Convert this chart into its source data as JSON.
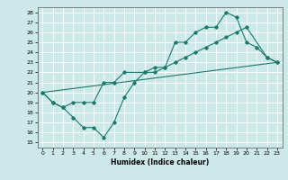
{
  "xlabel": "Humidex (Indice chaleur)",
  "bg_color": "#cce8e8",
  "grid_color": "#ffffff",
  "line_color": "#1a7a6a",
  "xlim": [
    -0.5,
    23.5
  ],
  "ylim": [
    14.5,
    28.5
  ],
  "xticks": [
    0,
    1,
    2,
    3,
    4,
    5,
    6,
    7,
    8,
    9,
    10,
    11,
    12,
    13,
    14,
    15,
    16,
    17,
    18,
    19,
    20,
    21,
    22,
    23
  ],
  "yticks": [
    15,
    16,
    17,
    18,
    19,
    20,
    21,
    22,
    23,
    24,
    25,
    26,
    27,
    28
  ],
  "line1_x": [
    0,
    1,
    2,
    3,
    4,
    5,
    6,
    7,
    8,
    9,
    10,
    11,
    12,
    13,
    14,
    15,
    16,
    17,
    18,
    19,
    20,
    21,
    22,
    23
  ],
  "line1_y": [
    20,
    19,
    18.5,
    17.5,
    16.5,
    16.5,
    15.5,
    17.0,
    19.5,
    21.0,
    22.0,
    22.0,
    22.5,
    25.0,
    25.0,
    26.0,
    26.5,
    26.5,
    28.0,
    27.5,
    25.0,
    24.5,
    23.5,
    23.0
  ],
  "line2_x": [
    0,
    1,
    2,
    3,
    4,
    5,
    6,
    7,
    8,
    10,
    11,
    12,
    13,
    14,
    15,
    16,
    17,
    18,
    19,
    20,
    22,
    23
  ],
  "line2_y": [
    20,
    19,
    18.5,
    19.0,
    19.0,
    19.0,
    21.0,
    21.0,
    22.0,
    22.0,
    22.5,
    22.5,
    23.0,
    23.5,
    24.0,
    24.5,
    25.0,
    25.5,
    26.0,
    26.5,
    23.5,
    23.0
  ],
  "line3_x": [
    0,
    23
  ],
  "line3_y": [
    20,
    23
  ]
}
